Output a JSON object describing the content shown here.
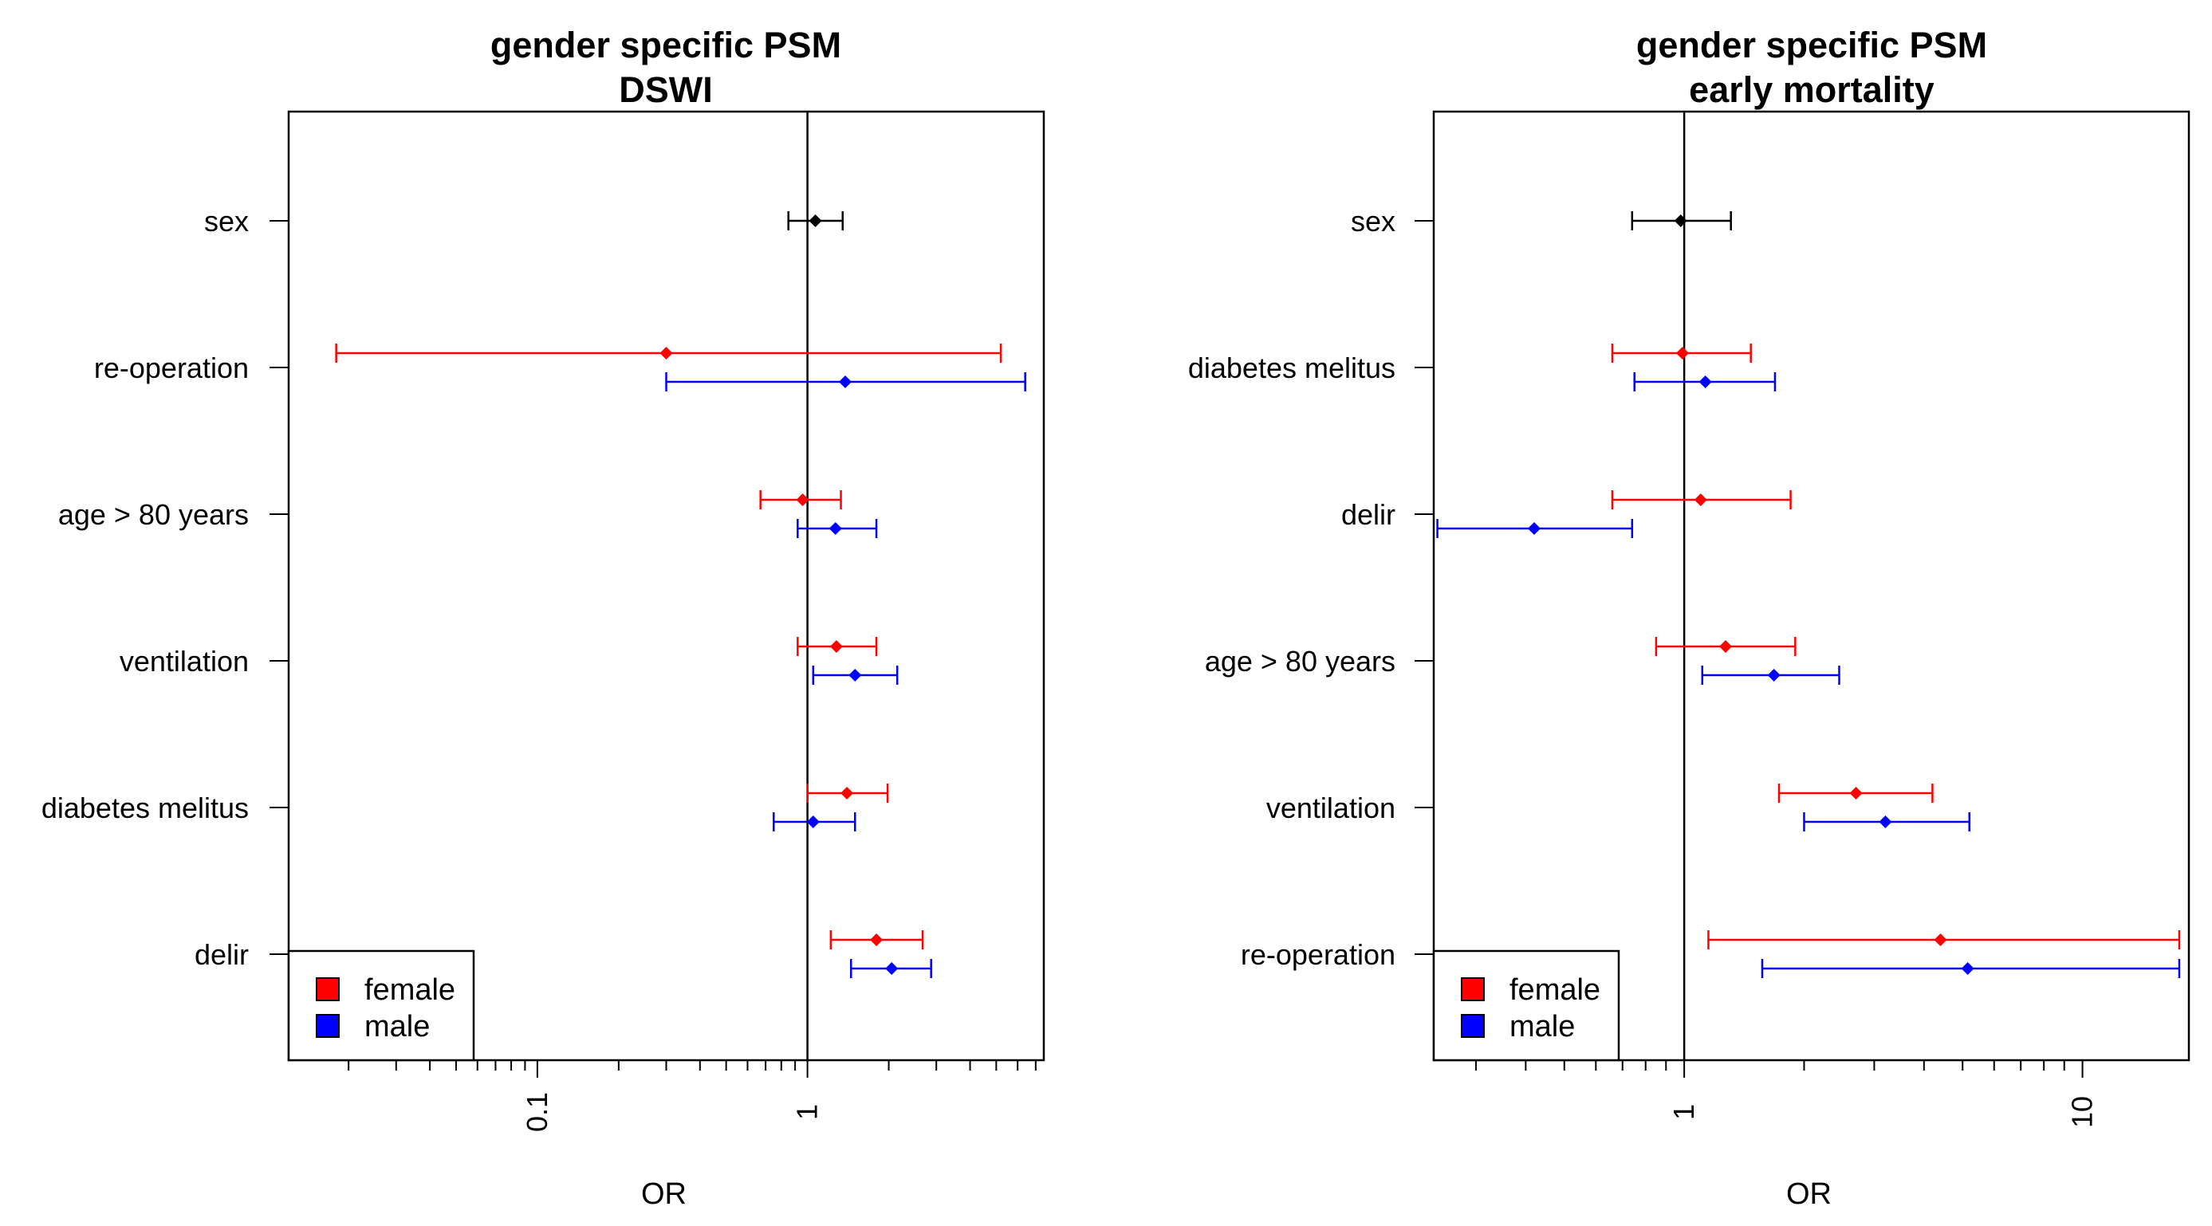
{
  "colors": {
    "female": "#ff0000",
    "male": "#0000ff",
    "overall": "#000000"
  },
  "chart_data": [
    {
      "type": "forest",
      "scale": "log",
      "title": [
        "gender specific PSM",
        "DSWI"
      ],
      "xlabel": "OR",
      "xlim": [
        0.012,
        7.5
      ],
      "xticks": [
        {
          "value": 0.1,
          "label": "0.1"
        },
        {
          "value": 1,
          "label": "1"
        }
      ],
      "reference_line": 1,
      "categories": [
        "sex",
        "re-operation",
        "age > 80 years",
        "ventilation",
        "diabetes melitus",
        "delir"
      ],
      "legend": {
        "position": "bottom-left",
        "entries": [
          {
            "label": "female",
            "color": "#ff0000"
          },
          {
            "label": "male",
            "color": "#0000ff"
          }
        ]
      },
      "rows": [
        {
          "category": "sex",
          "points": [
            {
              "group": "overall",
              "or": 1.07,
              "lo": 0.85,
              "hi": 1.35
            }
          ]
        },
        {
          "category": "re-operation",
          "points": [
            {
              "group": "female",
              "or": 0.3,
              "lo": 0.018,
              "hi": 5.2
            },
            {
              "group": "male",
              "or": 1.38,
              "lo": 0.3,
              "hi": 6.4
            }
          ]
        },
        {
          "category": "age > 80 years",
          "points": [
            {
              "group": "female",
              "or": 0.96,
              "lo": 0.67,
              "hi": 1.33
            },
            {
              "group": "male",
              "or": 1.27,
              "lo": 0.92,
              "hi": 1.8
            }
          ]
        },
        {
          "category": "ventilation",
          "points": [
            {
              "group": "female",
              "or": 1.28,
              "lo": 0.92,
              "hi": 1.8
            },
            {
              "group": "male",
              "or": 1.5,
              "lo": 1.05,
              "hi": 2.15
            }
          ]
        },
        {
          "category": "diabetes melitus",
          "points": [
            {
              "group": "female",
              "or": 1.4,
              "lo": 1.0,
              "hi": 1.98
            },
            {
              "group": "male",
              "or": 1.05,
              "lo": 0.75,
              "hi": 1.5
            }
          ]
        },
        {
          "category": "delir",
          "points": [
            {
              "group": "female",
              "or": 1.8,
              "lo": 1.22,
              "hi": 2.67
            },
            {
              "group": "male",
              "or": 2.05,
              "lo": 1.45,
              "hi": 2.87
            }
          ]
        }
      ]
    },
    {
      "type": "forest",
      "scale": "log",
      "title": [
        "gender specific PSM",
        "early mortality"
      ],
      "xlabel": "OR",
      "xlim": [
        0.235,
        18.5
      ],
      "xticks": [
        {
          "value": 1,
          "label": "1"
        },
        {
          "value": 10,
          "label": "10"
        }
      ],
      "reference_line": 1,
      "categories": [
        "sex",
        "diabetes melitus",
        "delir",
        "age > 80 years",
        "ventilation",
        "re-operation"
      ],
      "legend": {
        "position": "bottom-left",
        "entries": [
          {
            "label": "female",
            "color": "#ff0000"
          },
          {
            "label": "male",
            "color": "#0000ff"
          }
        ]
      },
      "rows": [
        {
          "category": "sex",
          "points": [
            {
              "group": "overall",
              "or": 0.98,
              "lo": 0.74,
              "hi": 1.31
            }
          ]
        },
        {
          "category": "diabetes melitus",
          "points": [
            {
              "group": "female",
              "or": 0.99,
              "lo": 0.66,
              "hi": 1.47
            },
            {
              "group": "male",
              "or": 1.13,
              "lo": 0.75,
              "hi": 1.69
            }
          ]
        },
        {
          "category": "delir",
          "points": [
            {
              "group": "female",
              "or": 1.1,
              "lo": 0.66,
              "hi": 1.85
            },
            {
              "group": "male",
              "or": 0.42,
              "lo": 0.24,
              "hi": 0.74
            }
          ]
        },
        {
          "category": "age > 80 years",
          "points": [
            {
              "group": "female",
              "or": 1.27,
              "lo": 0.85,
              "hi": 1.9
            },
            {
              "group": "male",
              "or": 1.68,
              "lo": 1.11,
              "hi": 2.45
            }
          ]
        },
        {
          "category": "ventilation",
          "points": [
            {
              "group": "female",
              "or": 2.7,
              "lo": 1.73,
              "hi": 4.2
            },
            {
              "group": "male",
              "or": 3.2,
              "lo": 2.0,
              "hi": 5.2
            }
          ]
        },
        {
          "category": "re-operation",
          "points": [
            {
              "group": "female",
              "or": 4.4,
              "lo": 1.15,
              "hi": 17.5
            },
            {
              "group": "male",
              "or": 5.15,
              "lo": 1.57,
              "hi": 17.5
            }
          ]
        }
      ]
    }
  ]
}
